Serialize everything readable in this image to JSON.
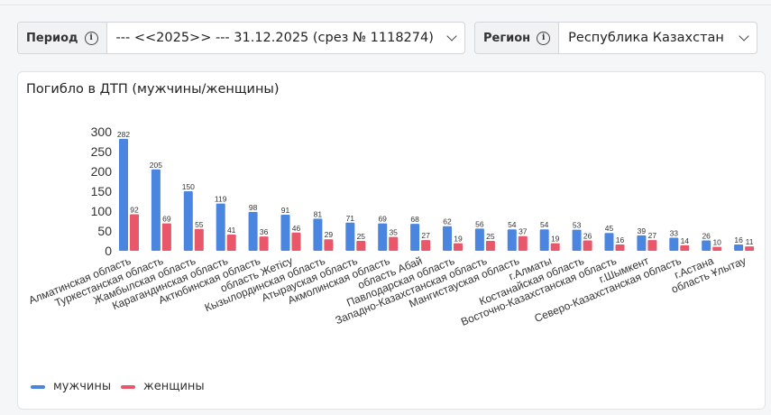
{
  "filters": {
    "period": {
      "label": "Период",
      "value": "--- <<2025>> --- 31.12.2025 (срез № 1118274)"
    },
    "region": {
      "label": "Регион",
      "value": "Республика Казахстан"
    }
  },
  "card": {
    "title": "Погибло в ДТП (мужчины/женщины)"
  },
  "icons": {
    "info": "info-icon",
    "dropdown": "chevron-down-icon"
  },
  "colors": {
    "men": "#4a86e0",
    "women": "#e9576b"
  },
  "chart_data": {
    "type": "bar",
    "title": "Погибло в ДТП (мужчины/женщины)",
    "categories": [
      "Алматинская область",
      "Туркестанская область",
      "Жамбылская область",
      "Карагандинская область",
      "Актюбинская область",
      "область Жетісу",
      "Кызылординская область",
      "Атырауская область",
      "Акмолинская область",
      "область Абай",
      "Павлодарская область",
      "Западно-Казахстанская область",
      "Мангистауская область",
      "г.Алматы",
      "Костанайская область",
      "Восточно-Казахстанская область",
      "г.Шымкент",
      "Северо-Казахстанская область",
      "г.Астана",
      "область Ұлытау"
    ],
    "series": [
      {
        "name": "мужчины",
        "color": "#4a86e0",
        "values": [
          282,
          205,
          150,
          119,
          98,
          91,
          81,
          71,
          69,
          68,
          62,
          56,
          54,
          54,
          53,
          45,
          39,
          33,
          26,
          16
        ]
      },
      {
        "name": "женщины",
        "color": "#e9576b",
        "values": [
          92,
          69,
          55,
          41,
          36,
          46,
          29,
          25,
          35,
          27,
          19,
          25,
          37,
          19,
          26,
          16,
          27,
          14,
          10,
          11
        ]
      }
    ],
    "yticks": [
      0,
      50,
      100,
      150,
      200,
      250,
      300
    ],
    "ylim": [
      0,
      300
    ],
    "grid": false,
    "legend": "bottom-left"
  }
}
